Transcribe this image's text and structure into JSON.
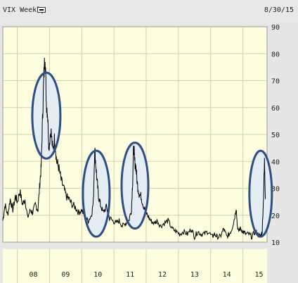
{
  "header": {
    "title": "VIX Weekly",
    "date": "8/30/15"
  },
  "chart_data": {
    "type": "line",
    "ylim": [
      10,
      90
    ],
    "y_ticks": [
      10,
      20,
      30,
      40,
      50,
      60,
      70,
      80,
      90
    ],
    "x_ticks": [
      "08",
      "09",
      "10",
      "11",
      "12",
      "13",
      "14",
      "15"
    ],
    "xlim": [
      2007.55,
      2015.75
    ],
    "series": [
      {
        "x": [
          2007.55,
          2007.62,
          2007.7,
          2007.78,
          2007.86,
          2007.94,
          2008.0,
          2008.08,
          2008.16,
          2008.24,
          2008.32,
          2008.4,
          2008.48,
          2008.56,
          2008.64,
          2008.7,
          2008.74,
          2008.78,
          2008.82,
          2008.86,
          2008.9,
          2008.94,
          2008.98,
          2009.04,
          2009.1,
          2009.16,
          2009.22,
          2009.28,
          2009.36,
          2009.44,
          2009.52,
          2009.6,
          2009.7,
          2009.8,
          2009.9,
          2010.0,
          2010.1,
          2010.2,
          2010.3,
          2010.36,
          2010.4,
          2010.44,
          2010.48,
          2010.52,
          2010.58,
          2010.66,
          2010.76,
          2010.86,
          2010.96,
          2011.06,
          2011.16,
          2011.26,
          2011.36,
          2011.46,
          2011.54,
          2011.58,
          2011.61,
          2011.64,
          2011.68,
          2011.72,
          2011.78,
          2011.84,
          2011.9,
          2011.96,
          2012.04,
          2012.14,
          2012.24,
          2012.34,
          2012.44,
          2012.56,
          2012.68,
          2012.8,
          2012.92,
          2013.04,
          2013.16,
          2013.28,
          2013.4,
          2013.5,
          2013.6,
          2013.7,
          2013.8,
          2013.92,
          2014.04,
          2014.12,
          2014.2,
          2014.3,
          2014.4,
          2014.5,
          2014.58,
          2014.66,
          2014.74,
          2014.79,
          2014.84,
          2014.92,
          2015.0,
          2015.08,
          2015.18,
          2015.28,
          2015.38,
          2015.46,
          2015.54,
          2015.6,
          2015.64,
          2015.67,
          2015.7
        ],
        "values": [
          18,
          24,
          20,
          26,
          22,
          27,
          25,
          29,
          24,
          26,
          19,
          22,
          21,
          24,
          22,
          32,
          38,
          55,
          70,
          81,
          62,
          58,
          45,
          52,
          44,
          49,
          40,
          38,
          33,
          30,
          27,
          26,
          24,
          23,
          21,
          22,
          19,
          18,
          20,
          25,
          45,
          38,
          32,
          27,
          24,
          21,
          23,
          19,
          18,
          17,
          18,
          16,
          17,
          18,
          22,
          33,
          46,
          40,
          38,
          32,
          28,
          27,
          24,
          22,
          20,
          18,
          17,
          18,
          16,
          17,
          18,
          15,
          14,
          13,
          14,
          13,
          15,
          12,
          14,
          13,
          13,
          14,
          12,
          13,
          12,
          12,
          15,
          12,
          13,
          15,
          19,
          23,
          14,
          15,
          14,
          13,
          13,
          12,
          14,
          13,
          12,
          14,
          27,
          40,
          26
        ]
      }
    ],
    "annotations": [
      {
        "type": "ellipse",
        "label": "peak-2008"
      },
      {
        "type": "ellipse",
        "label": "peak-2010"
      },
      {
        "type": "ellipse",
        "label": "peak-2011"
      },
      {
        "type": "ellipse",
        "label": "peak-2015"
      }
    ],
    "colors": {
      "plot_bg": "#ffffe0",
      "line": "#000000",
      "ellipse": "#2e4f86",
      "ellipse_fill": "#e4ecf4",
      "frame_bg": "#e6e6e6"
    }
  }
}
